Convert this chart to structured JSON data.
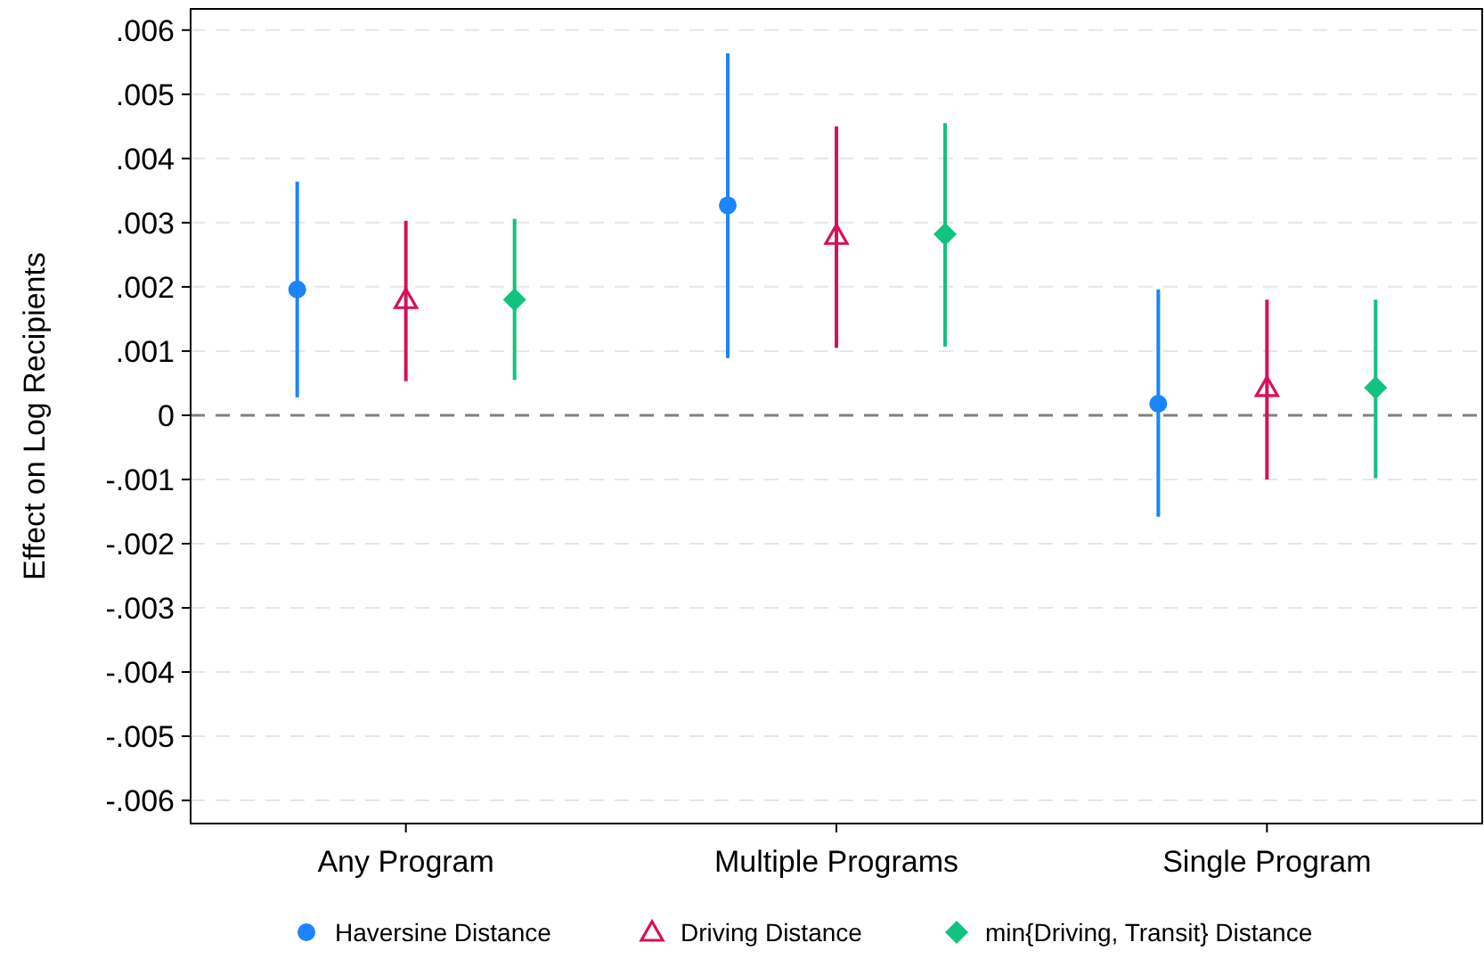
{
  "chart_data": {
    "type": "scatter",
    "ylabel": "Effect on Log Recipients",
    "categories": [
      "Any Program",
      "Multiple Programs",
      "Single Program"
    ],
    "ylim": [
      -0.00636,
      0.00633
    ],
    "yticks": [
      {
        "value": 0.006,
        "label": ".006"
      },
      {
        "value": 0.005,
        "label": ".005"
      },
      {
        "value": 0.004,
        "label": ".004"
      },
      {
        "value": 0.003,
        "label": ".003"
      },
      {
        "value": 0.002,
        "label": ".002"
      },
      {
        "value": 0.001,
        "label": ".001"
      },
      0,
      {
        "value": -0.001,
        "label": "-.001"
      },
      {
        "value": -0.002,
        "label": "-.002"
      },
      {
        "value": -0.003,
        "label": "-.003"
      },
      {
        "value": -0.004,
        "label": "-.004"
      },
      {
        "value": -0.005,
        "label": "-.005"
      },
      {
        "value": -0.006,
        "label": "-.006"
      }
    ],
    "grid": "y",
    "legend": "bottom",
    "ref_lines": [
      {
        "axis": "y",
        "value": 0,
        "color": "#808080",
        "line_style": "dashed"
      }
    ],
    "series": [
      {
        "name": "Haversine Distance",
        "color": "#1a85ff",
        "marker": "circle",
        "values": [
          0.00196,
          0.00327,
          0.00018
        ],
        "errors": [
          [
            0.00028,
            0.00364
          ],
          [
            0.00089,
            0.00564
          ],
          [
            -0.00158,
            0.00196
          ]
        ]
      },
      {
        "name": "Driving Distance",
        "color": "#d41159",
        "marker": "triangle",
        "values": [
          0.0018,
          0.0028,
          0.00043
        ],
        "errors": [
          [
            0.00053,
            0.00303
          ],
          [
            0.00105,
            0.0045
          ],
          [
            -0.001,
            0.0018
          ]
        ]
      },
      {
        "name": "min{Driving, Transit} Distance",
        "color": "#10c37e",
        "marker": "diamond",
        "values": [
          0.0018,
          0.00282,
          0.00043
        ],
        "errors": [
          [
            0.00055,
            0.00306
          ],
          [
            0.00107,
            0.00455
          ],
          [
            -0.00098,
            0.0018
          ]
        ]
      }
    ]
  }
}
